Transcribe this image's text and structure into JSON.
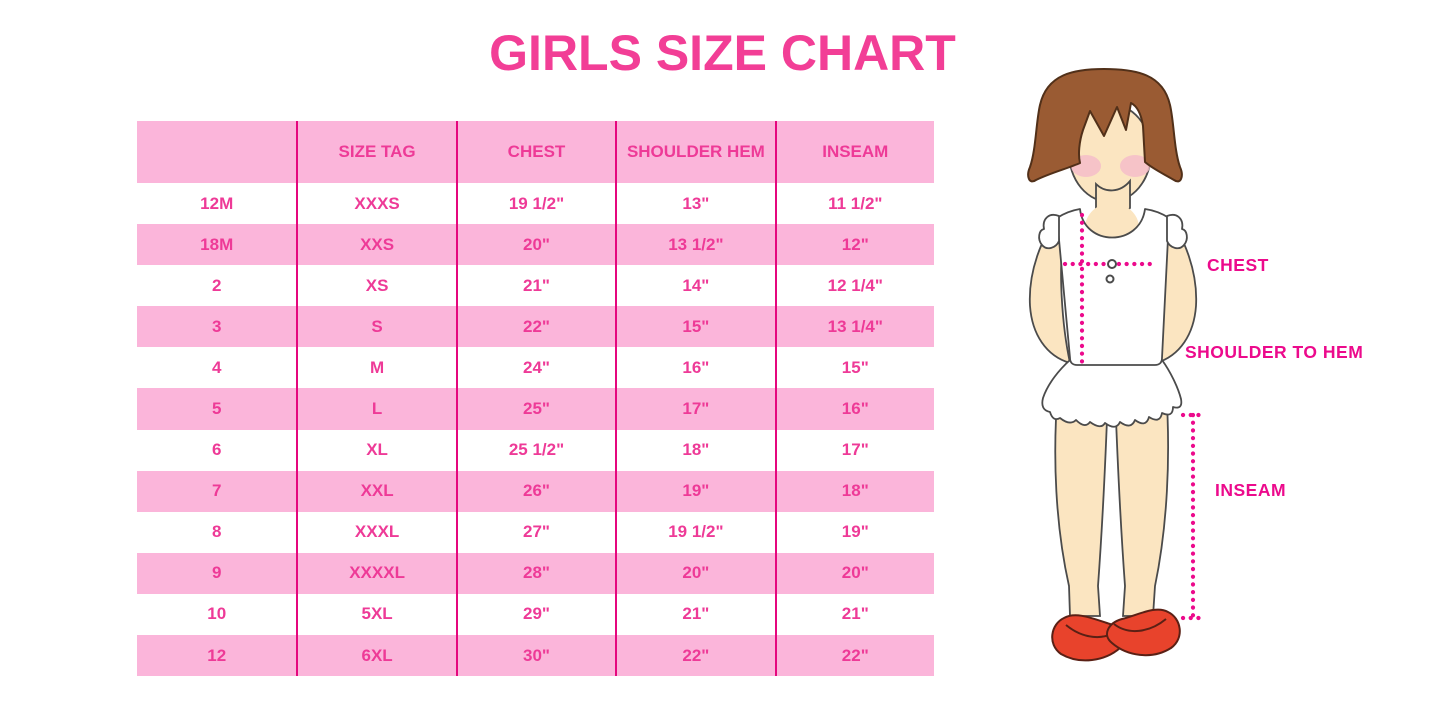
{
  "title": "GIRLS SIZE CHART",
  "table": {
    "headers": [
      "",
      "SIZE TAG",
      "CHEST",
      "SHOULDER HEM",
      "INSEAM"
    ],
    "rows": [
      [
        "12M",
        "XXXS",
        "19 1/2\"",
        "13\"",
        "11 1/2\""
      ],
      [
        "18M",
        "XXS",
        "20\"",
        "13 1/2\"",
        "12\""
      ],
      [
        "2",
        "XS",
        "21\"",
        "14\"",
        "12 1/4\""
      ],
      [
        "3",
        "S",
        "22\"",
        "15\"",
        "13 1/4\""
      ],
      [
        "4",
        "M",
        "24\"",
        "16\"",
        "15\""
      ],
      [
        "5",
        "L",
        "25\"",
        "17\"",
        "16\""
      ],
      [
        "6",
        "XL",
        "25 1/2\"",
        "18\"",
        "17\""
      ],
      [
        "7",
        "XXL",
        "26\"",
        "19\"",
        "18\""
      ],
      [
        "8",
        "XXXL",
        "27\"",
        "19 1/2\"",
        "19\""
      ],
      [
        "9",
        "XXXXL",
        "28\"",
        "20\"",
        "20\""
      ],
      [
        "10",
        "5XL",
        "29\"",
        "21\"",
        "21\""
      ],
      [
        "12",
        "6XL",
        "30\"",
        "22\"",
        "22\""
      ]
    ]
  },
  "diagram": {
    "labels": {
      "chest": "CHEST",
      "shoulder_to_hem": "SHOULDER TO HEM",
      "inseam": "INSEAM"
    }
  },
  "colors": {
    "title_pink": "#F23E96",
    "row_pink": "#FBB5DA",
    "table_text_pink": "#EE3A97",
    "divider_magenta": "#E5077E",
    "measure_magenta": "#EC0A8C",
    "hair_brown": "#9A5B33",
    "skin": "#FBE5C1",
    "blush": "#F5BDC9",
    "shoe_red": "#E8432C",
    "garment_white": "#FFFFFF"
  }
}
